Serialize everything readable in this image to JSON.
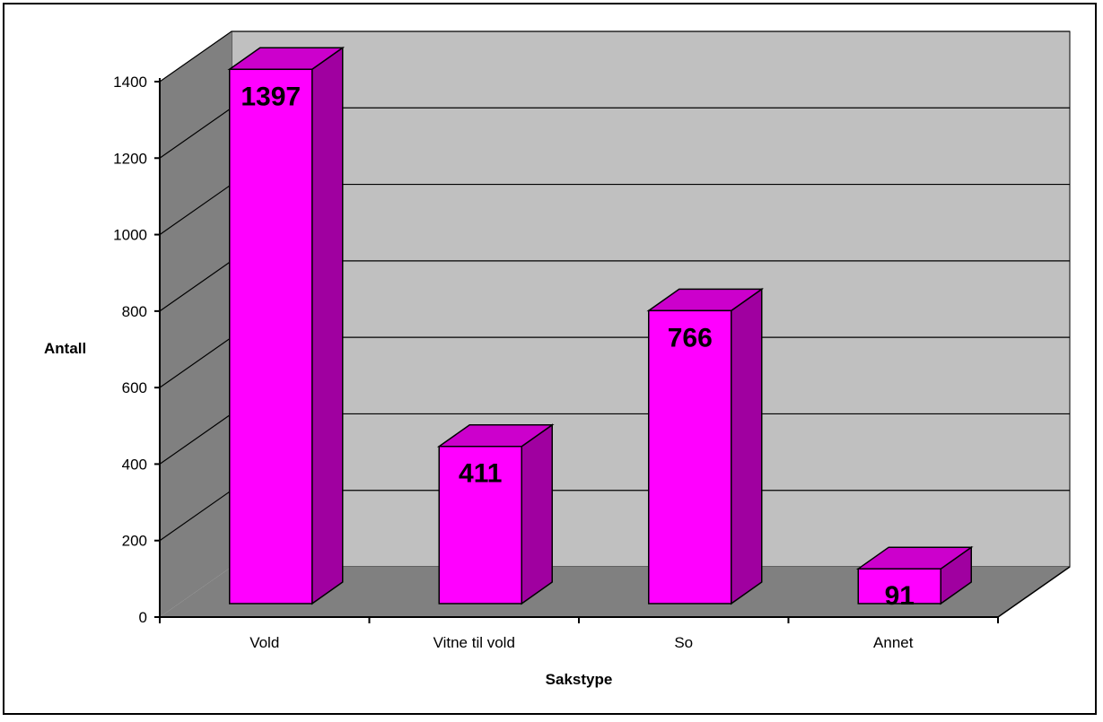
{
  "chart_data": {
    "type": "bar",
    "categories": [
      "Vold",
      "Vitne til vold",
      "So",
      "Annet"
    ],
    "values": [
      1397,
      411,
      766,
      91
    ],
    "data_labels": [
      "1397",
      "411",
      "766",
      "91"
    ],
    "xlabel": "Sakstype",
    "ylabel": "Antall",
    "ylim": [
      0,
      1400
    ],
    "yticks": [
      "0",
      "200",
      "400",
      "600",
      "800",
      "1000",
      "1200",
      "1400"
    ],
    "grid": true,
    "legend": "none",
    "style": "3d-column"
  },
  "colors": {
    "bar_front": "#ff00ff",
    "bar_top": "#cc00cc",
    "bar_side": "#a000a0",
    "back_wall": "#c0c0c0",
    "side_wall": "#808080",
    "floor": "#808080"
  }
}
